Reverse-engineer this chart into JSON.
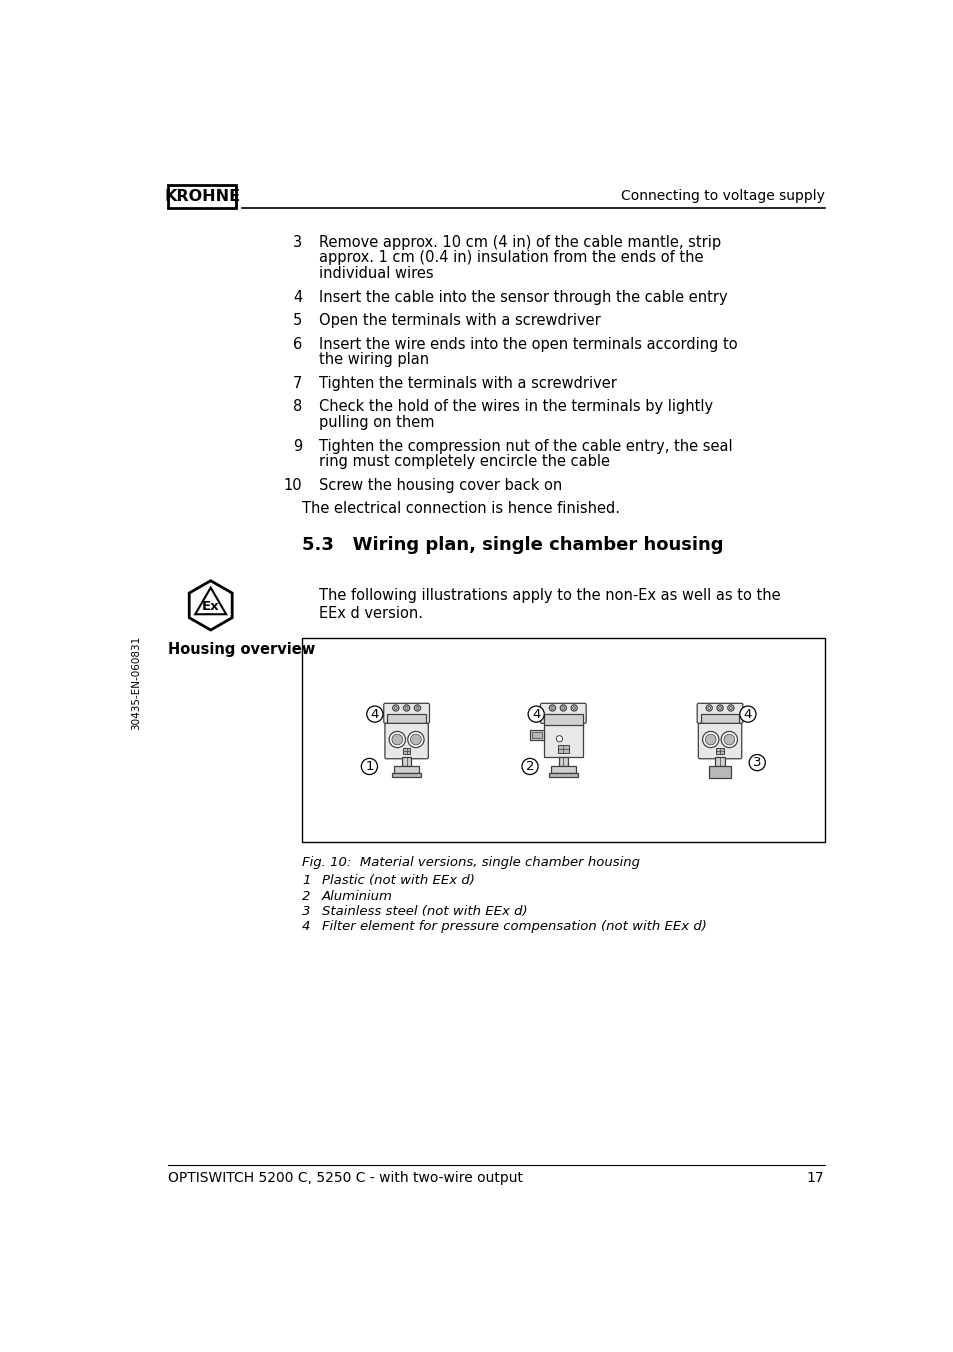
{
  "page_width": 9.54,
  "page_height": 13.52,
  "background_color": "#ffffff",
  "header_logo_text": "KROHNE",
  "header_right_text": "Connecting to voltage supply",
  "footer_left_text": "OPTISWITCH 5200 C, 5250 C - with two-wire output",
  "footer_right_text": "17",
  "footer_left_side_text": "30435-EN-060831",
  "section_number": "5.3",
  "section_title": "Wiring plan, single chamber housing",
  "intro_text": "The following illustrations apply to the non-Ex as well as to the\nEEx d version.",
  "housing_overview_label": "Housing overview",
  "fig_caption": "Fig. 10:  Material versions, single chamber housing",
  "fig_items": [
    {
      "num": "1",
      "text": "Plastic (not with EEx d)"
    },
    {
      "num": "2",
      "text": "Aluminium"
    },
    {
      "num": "3",
      "text": "Stainless steel (not with EEx d)"
    },
    {
      "num": "4",
      "text": "Filter element for pressure compensation (not with EEx d)"
    }
  ],
  "numbered_items": [
    {
      "num": "3",
      "text": "Remove approx. 10 cm (4 in) of the cable mantle, strip\napprox. 1 cm (0.4 in) insulation from the ends of the\nindividual wires"
    },
    {
      "num": "4",
      "text": "Insert the cable into the sensor through the cable entry"
    },
    {
      "num": "5",
      "text": "Open the terminals with a screwdriver"
    },
    {
      "num": "6",
      "text": "Insert the wire ends into the open terminals according to\nthe wiring plan"
    },
    {
      "num": "7",
      "text": "Tighten the terminals with a screwdriver"
    },
    {
      "num": "8",
      "text": "Check the hold of the wires in the terminals by lightly\npulling on them"
    },
    {
      "num": "9",
      "text": "Tighten the compression nut of the cable entry, the seal\nring must completely encircle the cable"
    },
    {
      "num": "10",
      "text": "Screw the housing cover back on"
    }
  ],
  "closing_text": "The electrical connection is hence finished.",
  "text_color": "#000000",
  "logo_border_color": "#000000",
  "header_line_color": "#000000",
  "footer_line_color": "#000000",
  "image_box_color": "#000000",
  "body_fontsize": 10.5,
  "small_fontsize": 9.5,
  "section_title_fontsize": 13,
  "header_fontsize": 10,
  "footer_fontsize": 10
}
